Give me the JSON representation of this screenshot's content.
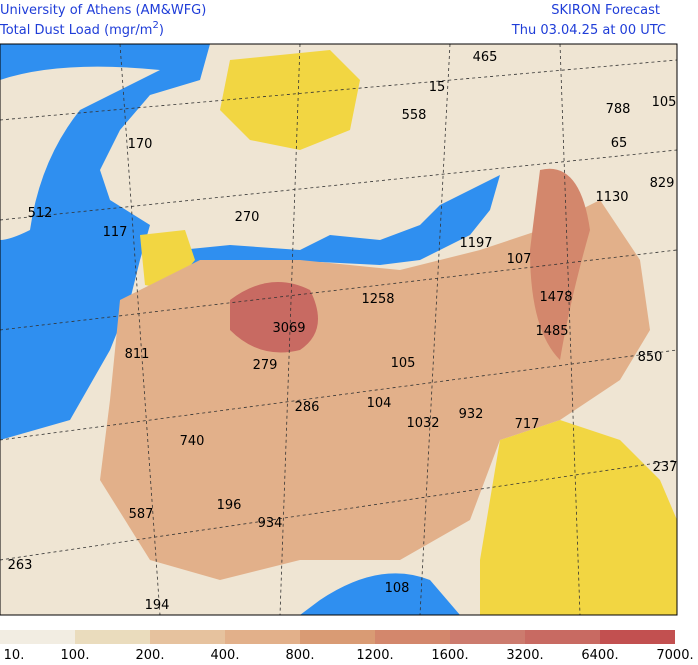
{
  "header": {
    "institution": "University of Athens (AM&WFG)",
    "product": "Total Dust Load (mgr/m",
    "product_superscript": "2",
    "product_suffix": ")",
    "model": "SKIRON Forecast",
    "valid_time": "Thu 03.04.25 at 00 UTC"
  },
  "map_labels": [
    "465",
    "15",
    "558",
    "788",
    "105",
    "65",
    "170",
    "829",
    "1130",
    "512",
    "117",
    "270",
    "1197",
    "107",
    "1258",
    "1478",
    "3069",
    "1485",
    "811",
    "279",
    "105",
    "850",
    "286",
    "104",
    "932",
    "1032",
    "717",
    "740",
    "237",
    "196",
    "587",
    "934",
    "263",
    "108",
    "194"
  ],
  "legend": {
    "labels": [
      "10.",
      "100.",
      "200.",
      "400.",
      "800.",
      "1200.",
      "1600.",
      "3200.",
      "6400.",
      "7000."
    ],
    "colors": [
      "#f2ede2",
      "#eadcbd",
      "#e6c29e",
      "#e2b08a",
      "#d99b74",
      "#d3876c",
      "#cc7b6e",
      "#c86a62",
      "#c25050"
    ]
  }
}
